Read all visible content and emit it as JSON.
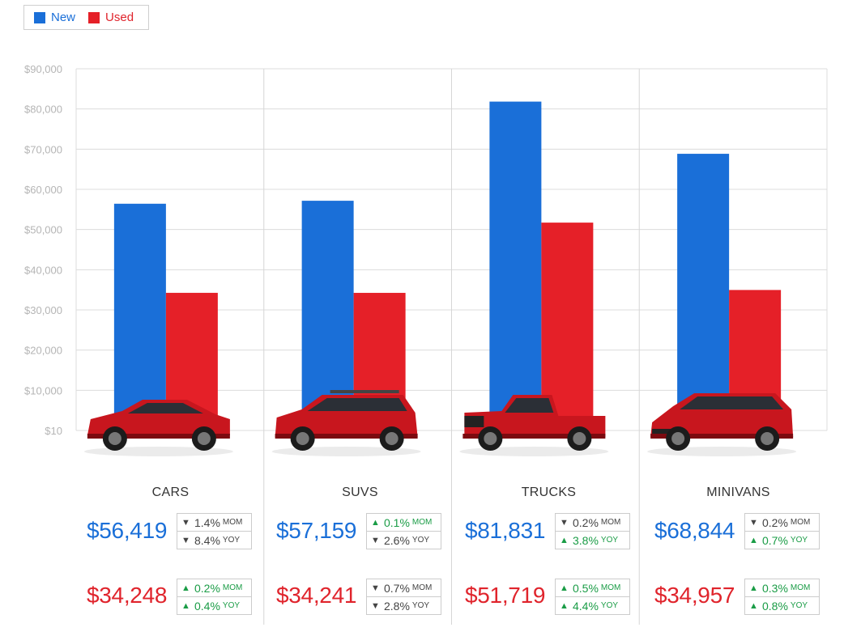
{
  "legend": {
    "new_label": "New",
    "used_label": "Used",
    "new_color": "#1a6fd8",
    "used_color": "#e52028"
  },
  "chart_data": {
    "type": "bar",
    "categories": [
      "CARS",
      "SUVS",
      "TRUCKS",
      "MINIVANS"
    ],
    "series": [
      {
        "name": "New",
        "values": [
          56419,
          57159,
          81831,
          68844
        ],
        "color": "#1a6fd8"
      },
      {
        "name": "Used",
        "values": [
          34248,
          34241,
          51719,
          34957
        ],
        "color": "#e52028"
      }
    ],
    "yticks": [
      "$10",
      "$10,000",
      "$20,000",
      "$30,000",
      "$40,000",
      "$50,000",
      "$60,000",
      "$70,000",
      "$80,000",
      "$90,000"
    ],
    "ylim": [
      0,
      90000
    ],
    "grid": true,
    "legend_position": "top-left"
  },
  "panels": [
    {
      "category": "CARS",
      "icon": "sedan-icon",
      "new_price": "$56,419",
      "used_price": "$34,248",
      "new_mom": {
        "dir": "down",
        "value": "1.4%",
        "unit": "MOM"
      },
      "new_yoy": {
        "dir": "down",
        "value": "8.4%",
        "unit": "YOY"
      },
      "used_mom": {
        "dir": "up",
        "value": "0.2%",
        "unit": "MOM"
      },
      "used_yoy": {
        "dir": "up",
        "value": "0.4%",
        "unit": "YOY"
      }
    },
    {
      "category": "SUVS",
      "icon": "suv-icon",
      "new_price": "$57,159",
      "used_price": "$34,241",
      "new_mom": {
        "dir": "up",
        "value": "0.1%",
        "unit": "MOM"
      },
      "new_yoy": {
        "dir": "down",
        "value": "2.6%",
        "unit": "YOY"
      },
      "used_mom": {
        "dir": "down",
        "value": "0.7%",
        "unit": "MOM"
      },
      "used_yoy": {
        "dir": "down",
        "value": "2.8%",
        "unit": "YOY"
      }
    },
    {
      "category": "TRUCKS",
      "icon": "truck-icon",
      "new_price": "$81,831",
      "used_price": "$51,719",
      "new_mom": {
        "dir": "down",
        "value": "0.2%",
        "unit": "MOM"
      },
      "new_yoy": {
        "dir": "up",
        "value": "3.8%",
        "unit": "YOY"
      },
      "used_mom": {
        "dir": "up",
        "value": "0.5%",
        "unit": "MOM"
      },
      "used_yoy": {
        "dir": "up",
        "value": "4.4%",
        "unit": "YOY"
      }
    },
    {
      "category": "MINIVANS",
      "icon": "minivan-icon",
      "new_price": "$68,844",
      "used_price": "$34,957",
      "new_mom": {
        "dir": "down",
        "value": "0.2%",
        "unit": "MOM"
      },
      "new_yoy": {
        "dir": "up",
        "value": "0.7%",
        "unit": "YOY"
      },
      "used_mom": {
        "dir": "up",
        "value": "0.3%",
        "unit": "MOM"
      },
      "used_yoy": {
        "dir": "up",
        "value": "0.8%",
        "unit": "YOY"
      }
    }
  ]
}
